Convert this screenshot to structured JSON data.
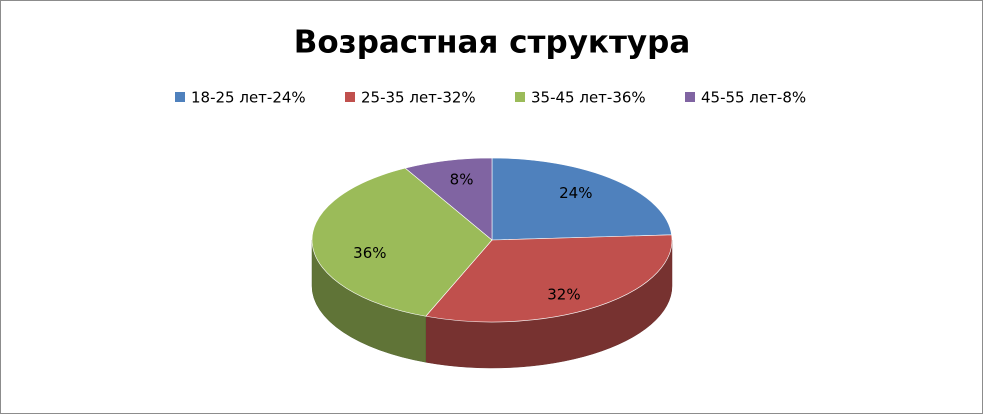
{
  "chart_data": {
    "type": "pie",
    "title": "Возрастная структура",
    "categories": [
      "18-25 лет-24%",
      "25-35 лет-32%",
      "35-45 лет-36%",
      "45-55 лет-8%"
    ],
    "values": [
      24,
      32,
      36,
      8
    ],
    "value_labels": [
      "24%",
      "32%",
      "36%",
      "8%"
    ],
    "colors": [
      "#4f81bd",
      "#c0504d",
      "#9bbb59",
      "#8064a2"
    ],
    "legend": "top"
  }
}
